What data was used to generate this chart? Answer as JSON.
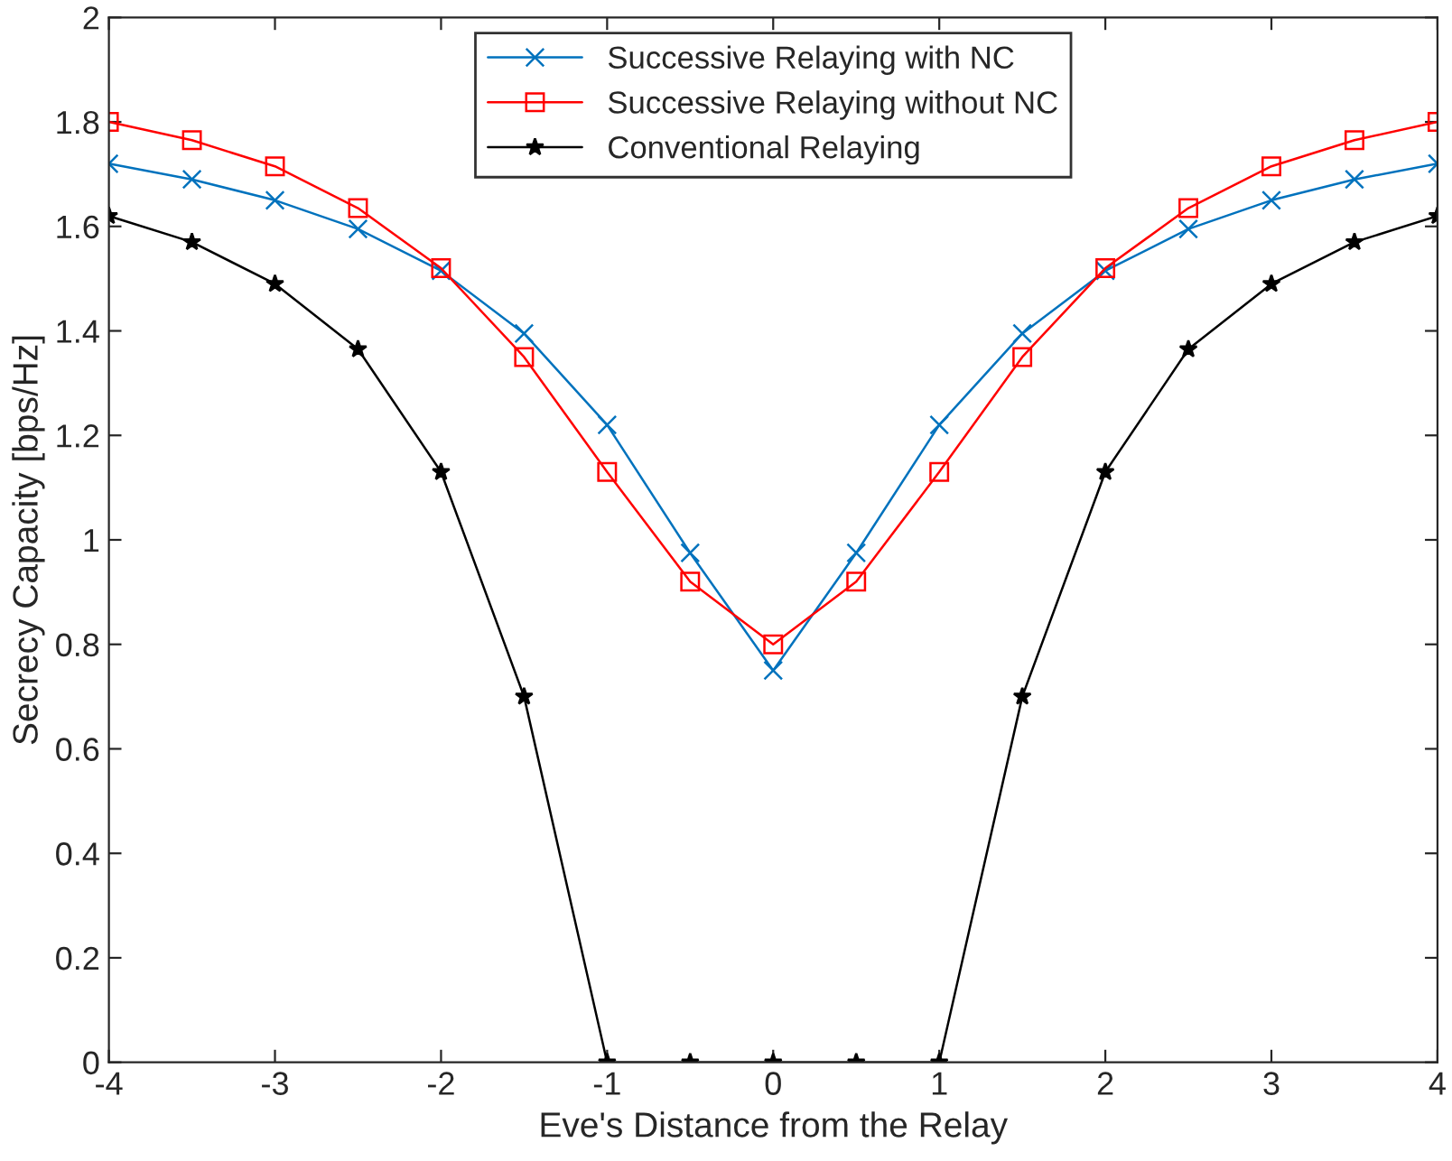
{
  "chart_data": {
    "type": "line",
    "xlabel": "Eve's Distance from the Relay",
    "ylabel": "Secrecy Capacity [bps/Hz]",
    "x": [
      -4,
      -3.5,
      -3,
      -2.5,
      -2,
      -1.5,
      -1,
      -0.5,
      0,
      0.5,
      1,
      1.5,
      2,
      2.5,
      3,
      3.5,
      4
    ],
    "series": [
      {
        "name": "Successive Relaying with NC",
        "color": "#0072bd",
        "marker": "cross",
        "values": [
          1.72,
          1.69,
          1.65,
          1.595,
          1.515,
          1.395,
          1.22,
          0.975,
          0.75,
          0.975,
          1.22,
          1.395,
          1.515,
          1.595,
          1.65,
          1.69,
          1.72
        ]
      },
      {
        "name": "Successive Relaying without NC",
        "color": "#ff0000",
        "marker": "square",
        "values": [
          1.8,
          1.765,
          1.715,
          1.635,
          1.52,
          1.35,
          1.13,
          0.92,
          0.8,
          0.92,
          1.13,
          1.35,
          1.52,
          1.635,
          1.715,
          1.765,
          1.8
        ]
      },
      {
        "name": "Conventional Relaying",
        "color": "#000000",
        "marker": "star",
        "values": [
          1.62,
          1.57,
          1.49,
          1.365,
          1.13,
          0.7,
          0,
          0,
          0,
          0,
          0,
          0.7,
          1.13,
          1.365,
          1.49,
          1.57,
          1.62
        ]
      }
    ],
    "xlim": [
      -4,
      4
    ],
    "xticks": [
      -4,
      -3,
      -2,
      -1,
      0,
      1,
      2,
      3,
      4
    ],
    "ylim": [
      0,
      2
    ],
    "yticks": [
      0,
      0.2,
      0.4,
      0.6,
      0.8,
      1,
      1.2,
      1.4,
      1.6,
      1.8,
      2
    ],
    "grid": false,
    "legend": "top",
    "line_style": "solid"
  }
}
